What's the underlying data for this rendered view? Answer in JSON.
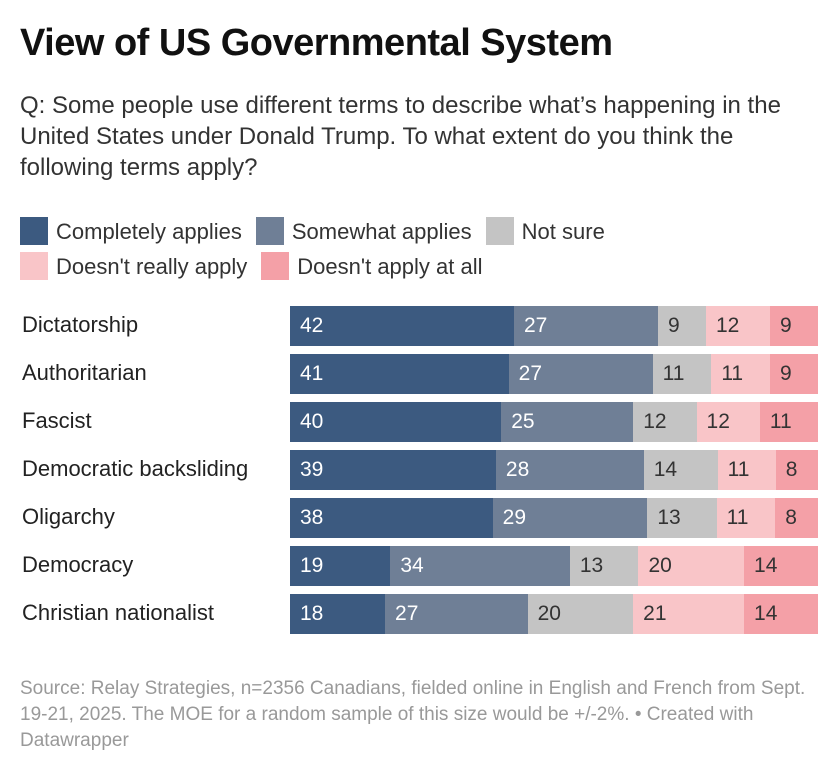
{
  "chart_data": {
    "type": "bar",
    "orientation": "horizontal-stacked",
    "title": "View of US Governmental System",
    "subtitle": "Q: Some people use different terms to describe what’s happening in the United States under Donald Trump. To what extent do you think the following terms apply?",
    "categories": [
      "Dictatorship",
      "Authoritarian",
      "Fascist",
      "Democratic backsliding",
      "Oligarchy",
      "Democracy",
      "Christian nationalist"
    ],
    "series": [
      {
        "name": "Completely applies",
        "color": "#3c5a80",
        "text_color": "#ffffff",
        "values": [
          42,
          41,
          40,
          39,
          38,
          19,
          18
        ]
      },
      {
        "name": "Somewhat applies",
        "color": "#6f7f96",
        "text_color": "#ffffff",
        "values": [
          27,
          27,
          25,
          28,
          29,
          34,
          27
        ]
      },
      {
        "name": "Not sure",
        "color": "#c4c4c4",
        "text_color": "#333333",
        "values": [
          9,
          11,
          12,
          14,
          13,
          13,
          20
        ]
      },
      {
        "name": "Doesn't really apply",
        "color": "#f9c5c8",
        "text_color": "#333333",
        "values": [
          12,
          11,
          12,
          11,
          11,
          20,
          21
        ]
      },
      {
        "name": "Doesn't apply at all",
        "color": "#f4a0a7",
        "text_color": "#333333",
        "values": [
          9,
          9,
          11,
          8,
          8,
          14,
          14
        ]
      }
    ],
    "legend_position": "top",
    "grid": false,
    "source": "Source: Relay Strategies, n=2356 Canadians, fielded online in English and French from Sept. 19-21, 2025. The MOE for a random sample of this size would be +/-2%. • Created with Datawrapper"
  }
}
